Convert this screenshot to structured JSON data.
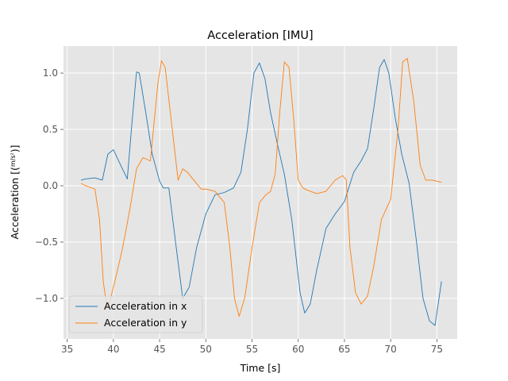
{
  "chart_data": {
    "type": "line",
    "title": "Acceleration [IMU]",
    "xlabel": "Time [s]",
    "ylabel_prefix": "Acceleration [(",
    "ylabel_num": "m",
    "ylabel_den": "s²",
    "ylabel_suffix": ")]",
    "xlim": [
      34.6,
      77.2
    ],
    "ylim": [
      -1.36,
      1.24
    ],
    "xticks": [
      35,
      40,
      45,
      50,
      55,
      60,
      65,
      70,
      75
    ],
    "yticks": [
      -1.0,
      -0.5,
      0.0,
      0.5,
      1.0
    ],
    "xtick_labels": [
      "35",
      "40",
      "45",
      "50",
      "55",
      "60",
      "65",
      "70",
      "75"
    ],
    "ytick_labels": [
      "−1.0",
      "−0.5",
      "0.0",
      "0.5",
      "1.0"
    ],
    "grid": true,
    "legend_position": "lower-left",
    "series": [
      {
        "name": "Acceleration in x",
        "color": "#1f77b4",
        "x": [
          36.5,
          37.0,
          38.0,
          38.8,
          39.4,
          40.0,
          40.8,
          41.5,
          42.0,
          42.5,
          42.8,
          43.5,
          44.2,
          45.0,
          45.4,
          46.0,
          46.8,
          47.5,
          48.2,
          49.0,
          50.0,
          51.0,
          52.0,
          53.0,
          53.8,
          54.5,
          55.2,
          55.8,
          56.4,
          57.0,
          57.8,
          58.5,
          59.3,
          60.2,
          60.7,
          61.3,
          62.0,
          63.0,
          64.0,
          65.0,
          66.0,
          66.8,
          67.5,
          68.2,
          68.8,
          69.3,
          69.8,
          70.5,
          71.2,
          72.0,
          72.8,
          73.5,
          74.2,
          74.8,
          75.5
        ],
        "y": [
          0.05,
          0.06,
          0.07,
          0.05,
          0.28,
          0.32,
          0.18,
          0.06,
          0.55,
          1.01,
          1.0,
          0.65,
          0.28,
          0.04,
          -0.02,
          -0.02,
          -0.55,
          -1.0,
          -0.9,
          -0.55,
          -0.25,
          -0.08,
          -0.06,
          -0.02,
          0.12,
          0.5,
          1.0,
          1.09,
          0.95,
          0.65,
          0.35,
          0.1,
          -0.3,
          -0.95,
          -1.13,
          -1.05,
          -0.75,
          -0.38,
          -0.25,
          -0.14,
          0.12,
          0.22,
          0.33,
          0.7,
          1.05,
          1.12,
          1.0,
          0.6,
          0.28,
          0.02,
          -0.5,
          -1.0,
          -1.2,
          -1.24,
          -0.85
        ]
      },
      {
        "name": "Acceleration in y",
        "color": "#ff7f0e",
        "x": [
          36.5,
          37.0,
          38.0,
          38.5,
          38.9,
          39.3,
          39.7,
          40.3,
          41.0,
          41.8,
          42.5,
          43.2,
          44.0,
          44.8,
          45.2,
          45.6,
          46.3,
          47.0,
          47.5,
          48.0,
          48.8,
          49.5,
          50.0,
          51.0,
          52.0,
          52.6,
          53.1,
          53.6,
          54.2,
          55.0,
          55.8,
          56.5,
          57.0,
          57.5,
          58.0,
          58.5,
          59.0,
          59.5,
          60.0,
          60.5,
          61.0,
          62.0,
          63.0,
          64.0,
          64.8,
          65.2,
          65.6,
          66.2,
          66.8,
          67.5,
          68.2,
          69.0,
          70.0,
          70.8,
          71.3,
          71.8,
          72.5,
          73.2,
          73.8,
          74.5,
          75.0,
          75.5
        ],
        "y": [
          0.02,
          0.0,
          -0.03,
          -0.3,
          -0.85,
          -1.08,
          -1.0,
          -0.8,
          -0.55,
          -0.2,
          0.15,
          0.25,
          0.22,
          0.9,
          1.11,
          1.05,
          0.55,
          0.05,
          0.15,
          0.12,
          0.04,
          -0.03,
          -0.03,
          -0.05,
          -0.15,
          -0.55,
          -1.0,
          -1.16,
          -1.0,
          -0.55,
          -0.15,
          -0.08,
          -0.05,
          0.1,
          0.65,
          1.1,
          1.05,
          0.6,
          0.05,
          -0.02,
          -0.04,
          -0.07,
          -0.05,
          0.05,
          0.09,
          0.05,
          -0.55,
          -0.95,
          -1.05,
          -0.98,
          -0.7,
          -0.3,
          -0.12,
          0.5,
          1.1,
          1.13,
          0.75,
          0.18,
          0.05,
          0.05,
          0.04,
          0.03
        ]
      }
    ]
  }
}
